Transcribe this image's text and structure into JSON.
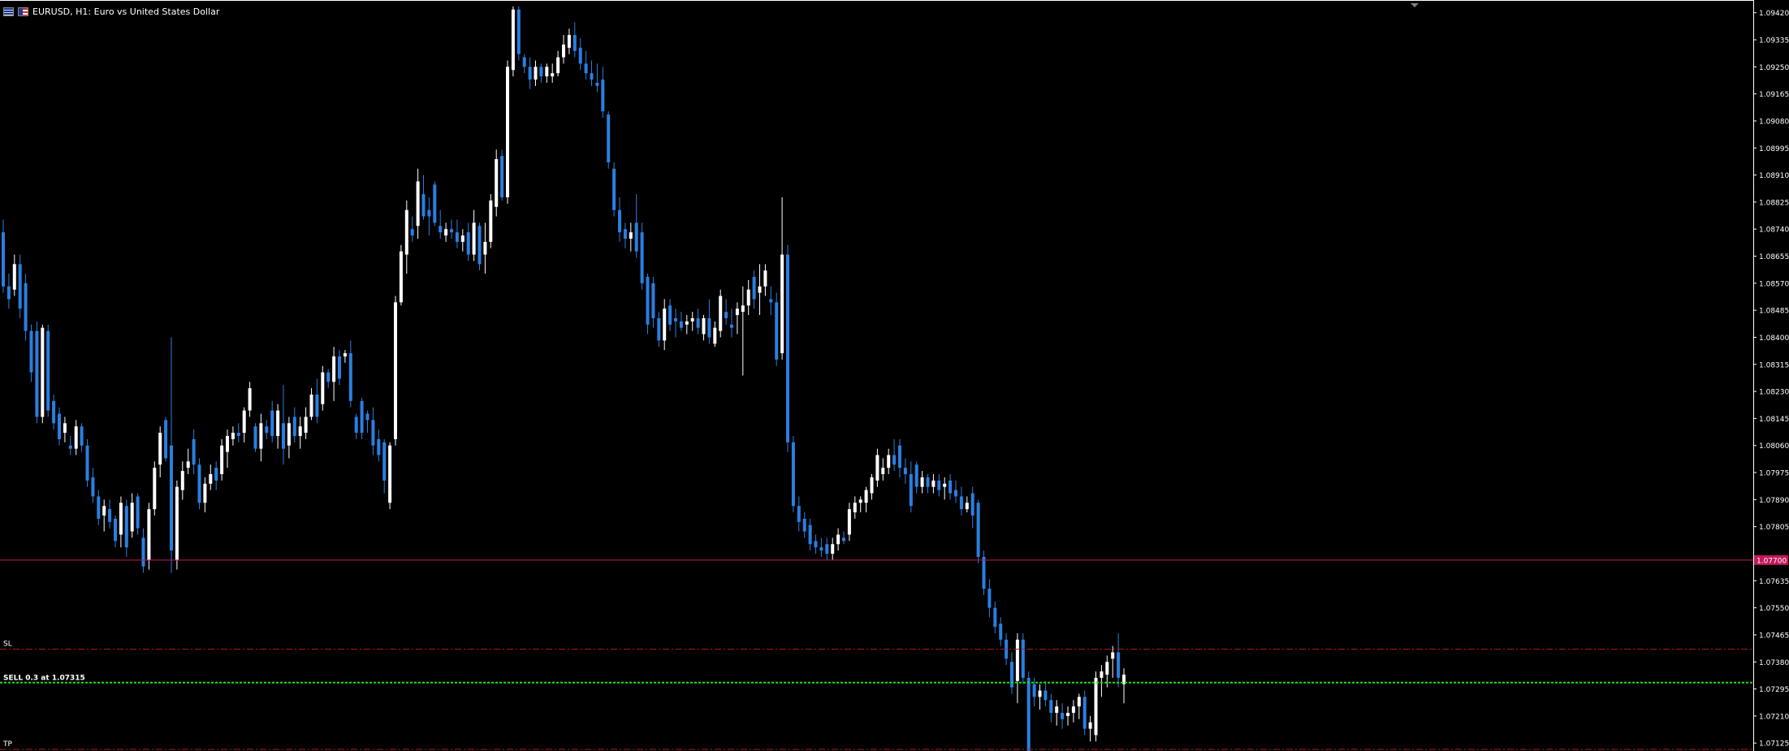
{
  "header": {
    "symbol_title": "EURUSD, H1:  Euro vs United States Dollar",
    "icon": "currency-pair-flags-icon"
  },
  "colors": {
    "background": "#000000",
    "bull_candle": "#ffffff",
    "bear_candle": "#2a7fe0",
    "axis_text": "#ffffff",
    "hline": "#c2185b",
    "sl_tp_line": "#b71c1c",
    "entry_line": "#17e317"
  },
  "chart_data": {
    "type": "candlestick",
    "title": "EURUSD, H1:  Euro vs United States Dollar",
    "y_ticks": [
      "1.09420",
      "1.09335",
      "1.09250",
      "1.09165",
      "1.09080",
      "1.08995",
      "1.08910",
      "1.08825",
      "1.08740",
      "1.08655",
      "1.08570",
      "1.08485",
      "1.08400",
      "1.08315",
      "1.08230",
      "1.08145",
      "1.08060",
      "1.07975",
      "1.07890",
      "1.07805",
      "1.07635",
      "1.07550",
      "1.07465",
      "1.07380",
      "1.07295",
      "1.07210",
      "1.07125"
    ],
    "ylim": [
      1.071,
      1.0946
    ],
    "grid": false,
    "lines": {
      "horizontal_price": {
        "value": 1.077,
        "label": "1.07700"
      },
      "sl": {
        "value": 1.0742,
        "label": "SL"
      },
      "entry": {
        "value": 1.07315,
        "label": "SELL 0.3 at 1.07315"
      },
      "tp": {
        "value": 1.07105,
        "label": "TP"
      }
    },
    "candles": [
      [
        1.0873,
        1.0877,
        1.0854,
        1.0856
      ],
      [
        1.0856,
        1.086,
        1.0849,
        1.0852
      ],
      [
        1.0855,
        1.0866,
        1.0853,
        1.0863
      ],
      [
        1.0863,
        1.0866,
        1.0846,
        1.0849
      ],
      [
        1.0857,
        1.086,
        1.0839,
        1.0842
      ],
      [
        1.0842,
        1.0844,
        1.0826,
        1.0829
      ],
      [
        1.0842,
        1.0845,
        1.0813,
        1.0815
      ],
      [
        1.0815,
        1.0844,
        1.0813,
        1.0843
      ],
      [
        1.0842,
        1.0844,
        1.0815,
        1.0817
      ],
      [
        1.082,
        1.0822,
        1.0811,
        1.0813
      ],
      [
        1.0816,
        1.0818,
        1.0806,
        1.0808
      ],
      [
        1.081,
        1.0815,
        1.0807,
        1.0813
      ],
      [
        1.0806,
        1.0809,
        1.0803,
        1.0805
      ],
      [
        1.0805,
        1.0814,
        1.0803,
        1.0812
      ],
      [
        1.0812,
        1.0813,
        1.0804,
        1.0806
      ],
      [
        1.0806,
        1.0808,
        1.0793,
        1.0795
      ],
      [
        1.0796,
        1.0799,
        1.0788,
        1.079
      ],
      [
        1.079,
        1.0792,
        1.0781,
        1.0783
      ],
      [
        1.0784,
        1.0789,
        1.0779,
        1.0787
      ],
      [
        1.0786,
        1.0789,
        1.078,
        1.0782
      ],
      [
        1.0783,
        1.0784,
        1.0774,
        1.0776
      ],
      [
        1.0778,
        1.079,
        1.0774,
        1.0788
      ],
      [
        1.0787,
        1.0789,
        1.0771,
        1.0774
      ],
      [
        1.0779,
        1.0791,
        1.0777,
        1.0788
      ],
      [
        1.079,
        1.0791,
        1.0778,
        1.078
      ],
      [
        1.0777,
        1.078,
        1.0766,
        1.0768
      ],
      [
        1.077,
        1.0788,
        1.0767,
        1.0786
      ],
      [
        1.0786,
        1.0801,
        1.0784,
        1.0799
      ],
      [
        1.08,
        1.0812,
        1.0796,
        1.081
      ],
      [
        1.0814,
        1.0815,
        1.0801,
        1.0802
      ],
      [
        1.0806,
        1.084,
        1.0766,
        1.0773
      ],
      [
        1.077,
        1.0795,
        1.0767,
        1.0793
      ],
      [
        1.0792,
        1.0801,
        1.0789,
        1.0798
      ],
      [
        1.0799,
        1.0805,
        1.0797,
        1.0801
      ],
      [
        1.0808,
        1.0811,
        1.0797,
        1.08
      ],
      [
        1.08,
        1.0802,
        1.0786,
        1.0788
      ],
      [
        1.0788,
        1.0796,
        1.0785,
        1.0794
      ],
      [
        1.0794,
        1.08,
        1.0792,
        1.0797
      ],
      [
        1.0799,
        1.0801,
        1.0792,
        1.0795
      ],
      [
        1.0797,
        1.0808,
        1.0795,
        1.0806
      ],
      [
        1.0804,
        1.0811,
        1.0799,
        1.0809
      ],
      [
        1.0808,
        1.0812,
        1.0806,
        1.081
      ],
      [
        1.081,
        1.0813,
        1.0807,
        1.0809
      ],
      [
        1.081,
        1.0818,
        1.0807,
        1.0817
      ],
      [
        1.0817,
        1.0826,
        1.0815,
        1.0824
      ],
      [
        1.0812,
        1.0813,
        1.0804,
        1.0805
      ],
      [
        1.0805,
        1.0816,
        1.0801,
        1.0813
      ],
      [
        1.0812,
        1.0814,
        1.0808,
        1.081
      ],
      [
        1.0817,
        1.082,
        1.0807,
        1.0809
      ],
      [
        1.0809,
        1.0819,
        1.0805,
        1.0817
      ],
      [
        1.0813,
        1.0825,
        1.08,
        1.0805
      ],
      [
        1.0806,
        1.0815,
        1.0802,
        1.0813
      ],
      [
        1.0815,
        1.0818,
        1.0807,
        1.0809
      ],
      [
        1.0809,
        1.0815,
        1.0805,
        1.0812
      ],
      [
        1.081,
        1.0818,
        1.0808,
        1.0815
      ],
      [
        1.0815,
        1.0824,
        1.0814,
        1.0822
      ],
      [
        1.0822,
        1.0827,
        1.0813,
        1.0815
      ],
      [
        1.0819,
        1.0831,
        1.0817,
        1.0829
      ],
      [
        1.0829,
        1.083,
        1.0824,
        1.0826
      ],
      [
        1.0826,
        1.0837,
        1.082,
        1.0834
      ],
      [
        1.0834,
        1.0836,
        1.0825,
        1.0827
      ],
      [
        1.0834,
        1.0836,
        1.0832,
        1.0835
      ],
      [
        1.0835,
        1.0839,
        1.0818,
        1.082
      ],
      [
        1.0815,
        1.0816,
        1.0808,
        1.081
      ],
      [
        1.082,
        1.0821,
        1.0808,
        1.081
      ],
      [
        1.0816,
        1.0817,
        1.081,
        1.0814
      ],
      [
        1.0814,
        1.0818,
        1.0803,
        1.0806
      ],
      [
        1.0808,
        1.0811,
        1.0801,
        1.0803
      ],
      [
        1.0807,
        1.0808,
        1.0791,
        1.0795
      ],
      [
        1.0788,
        1.0807,
        1.0786,
        1.0806
      ],
      [
        1.0808,
        1.0853,
        1.0806,
        1.0851
      ],
      [
        1.0851,
        1.0869,
        1.085,
        1.0867
      ],
      [
        1.0866,
        1.0883,
        1.086,
        1.088
      ],
      [
        1.0874,
        1.0878,
        1.087,
        1.0872
      ],
      [
        1.0875,
        1.0893,
        1.0871,
        1.0889
      ],
      [
        1.0885,
        1.0891,
        1.0877,
        1.0878
      ],
      [
        1.088,
        1.0884,
        1.0872,
        1.0878
      ],
      [
        1.0888,
        1.0889,
        1.0875,
        1.0876
      ],
      [
        1.0875,
        1.088,
        1.0871,
        1.0873
      ],
      [
        1.0872,
        1.0876,
        1.087,
        1.0874
      ],
      [
        1.0874,
        1.0877,
        1.0871,
        1.0873
      ],
      [
        1.0873,
        1.0877,
        1.0868,
        1.087
      ],
      [
        1.087,
        1.0874,
        1.0867,
        1.0872
      ],
      [
        1.0873,
        1.0876,
        1.0864,
        1.0866
      ],
      [
        1.0866,
        1.088,
        1.0864,
        1.0876
      ],
      [
        1.0875,
        1.0876,
        1.0861,
        1.0863
      ],
      [
        1.0866,
        1.0876,
        1.086,
        1.087
      ],
      [
        1.087,
        1.0885,
        1.0868,
        1.0883
      ],
      [
        1.0881,
        1.0899,
        1.0878,
        1.0896
      ],
      [
        1.0897,
        1.0899,
        1.0883,
        1.0884
      ],
      [
        1.0884,
        1.0927,
        1.0882,
        1.0925
      ],
      [
        1.0924,
        1.0944,
        1.0922,
        1.0943
      ],
      [
        1.0943,
        1.0944,
        1.0927,
        1.0929
      ],
      [
        1.0928,
        1.0929,
        1.0923,
        1.0925
      ],
      [
        1.0925,
        1.0928,
        1.0918,
        1.0921
      ],
      [
        1.0921,
        1.0927,
        1.0919,
        1.0925
      ],
      [
        1.0925,
        1.0926,
        1.092,
        1.0922
      ],
      [
        1.0922,
        1.0926,
        1.092,
        1.0925
      ],
      [
        1.0922,
        1.0926,
        1.092,
        1.0923
      ],
      [
        1.0923,
        1.093,
        1.0922,
        1.0928
      ],
      [
        1.0928,
        1.0935,
        1.0926,
        1.0932
      ],
      [
        1.0931,
        1.0937,
        1.0929,
        1.0935
      ],
      [
        1.0935,
        1.0939,
        1.0928,
        1.093
      ],
      [
        1.0931,
        1.0934,
        1.0924,
        1.0926
      ],
      [
        1.0926,
        1.093,
        1.0921,
        1.0923
      ],
      [
        1.0923,
        1.0927,
        1.0919,
        1.0921
      ],
      [
        1.092,
        1.0926,
        1.0917,
        1.0919
      ],
      [
        1.0921,
        1.0925,
        1.0909,
        1.0911
      ],
      [
        1.091,
        1.0911,
        1.0893,
        1.0895
      ],
      [
        1.0893,
        1.0895,
        1.0878,
        1.088
      ],
      [
        1.088,
        1.0884,
        1.087,
        1.0873
      ],
      [
        1.0874,
        1.0876,
        1.0868,
        1.0871
      ],
      [
        1.0871,
        1.0876,
        1.0867,
        1.0873
      ],
      [
        1.0876,
        1.0885,
        1.0865,
        1.0867
      ],
      [
        1.0873,
        1.0876,
        1.0855,
        1.0857
      ],
      [
        1.0859,
        1.086,
        1.0841,
        1.0844
      ],
      [
        1.0857,
        1.0859,
        1.0843,
        1.0846
      ],
      [
        1.0846,
        1.0848,
        1.0837,
        1.0839
      ],
      [
        1.0839,
        1.0852,
        1.0836,
        1.0849
      ],
      [
        1.085,
        1.0852,
        1.0842,
        1.0844
      ],
      [
        1.0846,
        1.0849,
        1.084,
        1.0845
      ],
      [
        1.0845,
        1.0848,
        1.0842,
        1.0843
      ],
      [
        1.0844,
        1.0847,
        1.0841,
        1.0845
      ],
      [
        1.0845,
        1.0848,
        1.0842,
        1.0846
      ],
      [
        1.0846,
        1.0849,
        1.0841,
        1.0843
      ],
      [
        1.0841,
        1.0847,
        1.0839,
        1.0846
      ],
      [
        1.0846,
        1.0852,
        1.0838,
        1.084
      ],
      [
        1.0838,
        1.0845,
        1.0837,
        1.0843
      ],
      [
        1.0842,
        1.0855,
        1.084,
        1.0853
      ],
      [
        1.0848,
        1.0852,
        1.0844,
        1.0846
      ],
      [
        1.0844,
        1.0849,
        1.084,
        1.0843
      ],
      [
        1.0847,
        1.0851,
        1.0841,
        1.0849
      ],
      [
        1.0848,
        1.0856,
        1.0828,
        1.085
      ],
      [
        1.085,
        1.0858,
        1.0847,
        1.0855
      ],
      [
        1.0859,
        1.0861,
        1.0849,
        1.0852
      ],
      [
        1.0854,
        1.0863,
        1.0847,
        1.0856
      ],
      [
        1.0856,
        1.0863,
        1.0853,
        1.0861
      ],
      [
        1.0852,
        1.0856,
        1.0847,
        1.0851
      ],
      [
        1.0851,
        1.0854,
        1.0831,
        1.0833
      ],
      [
        1.0835,
        1.0884,
        1.0833,
        1.0866
      ],
      [
        1.0866,
        1.0869,
        1.0804,
        1.0807
      ],
      [
        1.0807,
        1.0809,
        1.0785,
        1.0787
      ],
      [
        1.0787,
        1.079,
        1.0779,
        1.0782
      ],
      [
        1.0783,
        1.0785,
        1.0777,
        1.0779
      ],
      [
        1.0781,
        1.0783,
        1.0773,
        1.0775
      ],
      [
        1.0776,
        1.0778,
        1.0772,
        1.0774
      ],
      [
        1.0774,
        1.0777,
        1.0771,
        1.0773
      ],
      [
        1.0775,
        1.0777,
        1.077,
        1.0772
      ],
      [
        1.0772,
        1.0777,
        1.077,
        1.0775
      ],
      [
        1.0775,
        1.078,
        1.0773,
        1.0778
      ],
      [
        1.0777,
        1.0779,
        1.0775,
        1.0776
      ],
      [
        1.0778,
        1.0788,
        1.0776,
        1.0786
      ],
      [
        1.0785,
        1.079,
        1.0783,
        1.0788
      ],
      [
        1.0788,
        1.079,
        1.0785,
        1.0789
      ],
      [
        1.0788,
        1.0793,
        1.0785,
        1.0792
      ],
      [
        1.0791,
        1.0797,
        1.0789,
        1.0796
      ],
      [
        1.0795,
        1.0805,
        1.0793,
        1.0803
      ],
      [
        1.0797,
        1.0802,
        1.0795,
        1.0799
      ],
      [
        1.0799,
        1.0805,
        1.0797,
        1.0803
      ],
      [
        1.0803,
        1.0808,
        1.0798,
        1.08
      ],
      [
        1.0806,
        1.0808,
        1.0796,
        1.0799
      ],
      [
        1.0799,
        1.0802,
        1.0794,
        1.0797
      ],
      [
        1.0797,
        1.0801,
        1.0785,
        1.0787
      ],
      [
        1.08,
        1.0801,
        1.0791,
        1.0793
      ],
      [
        1.0793,
        1.0798,
        1.0791,
        1.0796
      ],
      [
        1.0796,
        1.0797,
        1.0791,
        1.0793
      ],
      [
        1.0793,
        1.0797,
        1.0791,
        1.0795
      ],
      [
        1.0795,
        1.0797,
        1.079,
        1.0792
      ],
      [
        1.0793,
        1.0796,
        1.0789,
        1.0794
      ],
      [
        1.0795,
        1.0797,
        1.0789,
        1.0791
      ],
      [
        1.0792,
        1.0795,
        1.0788,
        1.079
      ],
      [
        1.079,
        1.0793,
        1.0784,
        1.0786
      ],
      [
        1.0786,
        1.079,
        1.0785,
        1.0788
      ],
      [
        1.0791,
        1.0793,
        1.078,
        1.0784
      ],
      [
        1.0788,
        1.0789,
        1.0769,
        1.0771
      ],
      [
        1.0771,
        1.0773,
        1.0759,
        1.0761
      ],
      [
        1.0761,
        1.0764,
        1.0752,
        1.0755
      ],
      [
        1.0755,
        1.0757,
        1.0747,
        1.0749
      ],
      [
        1.075,
        1.0752,
        1.0743,
        1.0745
      ],
      [
        1.0745,
        1.0747,
        1.0737,
        1.0739
      ],
      [
        1.0738,
        1.0741,
        1.0728,
        1.073
      ],
      [
        1.0732,
        1.0747,
        1.0725,
        1.0745
      ],
      [
        1.0745,
        1.0747,
        1.0731,
        1.0733
      ],
      [
        1.0733,
        1.0735,
        1.0704,
        1.0706
      ],
      [
        1.0731,
        1.0733,
        1.0724,
        1.0727
      ],
      [
        1.0727,
        1.0731,
        1.0723,
        1.0729
      ],
      [
        1.0729,
        1.0732,
        1.0724,
        1.0726
      ],
      [
        1.0726,
        1.0728,
        1.0719,
        1.0722
      ],
      [
        1.0722,
        1.0726,
        1.0718,
        1.0724
      ],
      [
        1.0722,
        1.0725,
        1.0717,
        1.072
      ],
      [
        1.0721,
        1.0724,
        1.0718,
        1.0722
      ],
      [
        1.0722,
        1.0726,
        1.0719,
        1.0724
      ],
      [
        1.0724,
        1.0728,
        1.072,
        1.0727
      ],
      [
        1.0727,
        1.0729,
        1.0715,
        1.0717
      ],
      [
        1.0717,
        1.0721,
        1.0713,
        1.0719
      ],
      [
        1.0715,
        1.0735,
        1.0713,
        1.0733
      ],
      [
        1.0733,
        1.0737,
        1.0727,
        1.0735
      ],
      [
        1.0734,
        1.074,
        1.073,
        1.0738
      ],
      [
        1.0739,
        1.0743,
        1.0733,
        1.0741
      ],
      [
        1.0741,
        1.0747,
        1.073,
        1.0733
      ],
      [
        1.0731,
        1.0736,
        1.0725,
        1.0734
      ]
    ]
  }
}
